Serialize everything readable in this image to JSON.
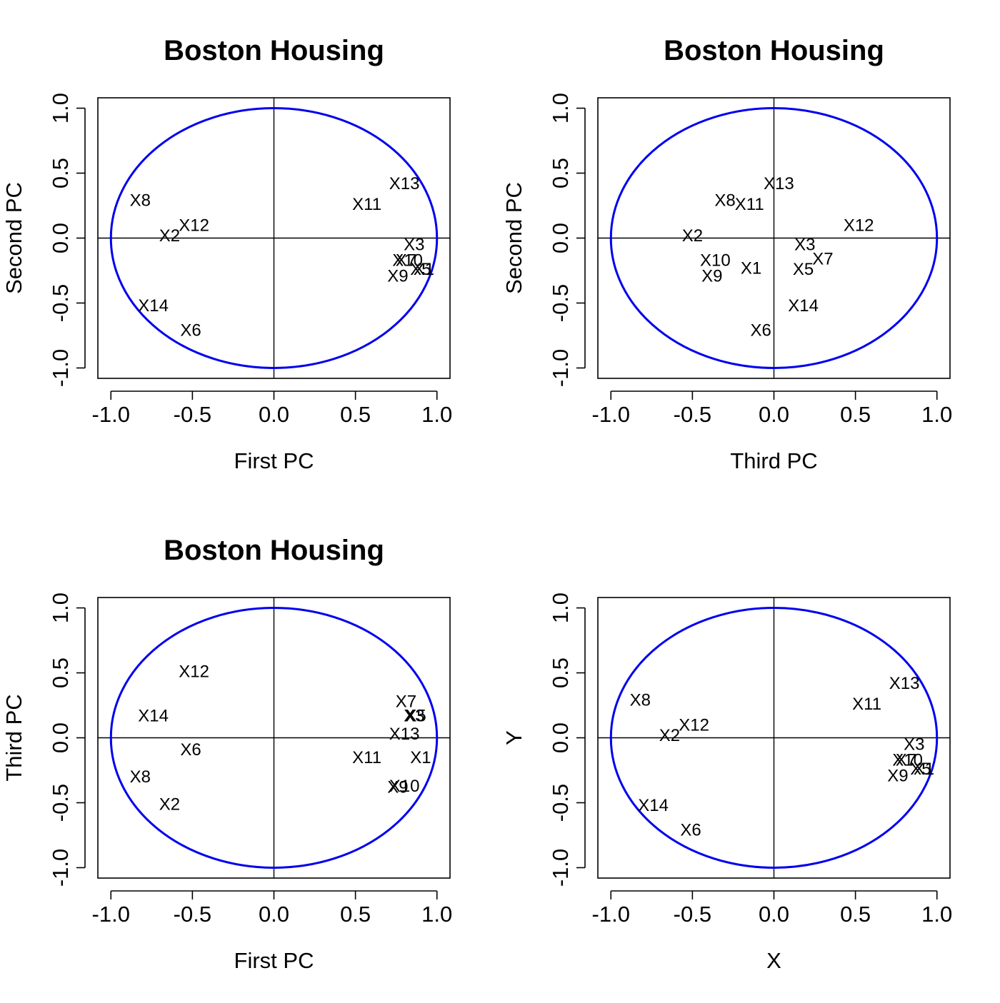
{
  "figure": {
    "background": "#ffffff",
    "circle_color": "#0000ee",
    "axis_color": "#000000"
  },
  "chart_data": [
    {
      "type": "scatter",
      "title": "Boston Housing",
      "xlabel": "First PC",
      "ylabel": "Second PC",
      "xlim": [
        -1.08,
        1.08
      ],
      "ylim": [
        -1.08,
        1.08
      ],
      "xticks": [
        -1.0,
        -0.5,
        0.0,
        0.5,
        1.0
      ],
      "yticks": [
        -1.0,
        -0.5,
        0.0,
        0.5,
        1.0
      ],
      "xtick_labels": [
        "-1.0",
        "-0.5",
        "0.0",
        "0.5",
        "1.0"
      ],
      "ytick_labels": [
        "-1.0",
        "-0.5",
        "0.0",
        "0.5",
        "1.0"
      ],
      "unit_circle": true,
      "reference_lines": [
        0,
        0
      ],
      "points": [
        {
          "label": "X1",
          "x": 0.92,
          "y": -0.24
        },
        {
          "label": "X2",
          "x": -0.64,
          "y": 0.02
        },
        {
          "label": "X3",
          "x": 0.86,
          "y": -0.05
        },
        {
          "label": "X5",
          "x": 0.9,
          "y": -0.24
        },
        {
          "label": "X6",
          "x": -0.51,
          "y": -0.71
        },
        {
          "label": "X7",
          "x": 0.81,
          "y": -0.17
        },
        {
          "label": "X8",
          "x": -0.82,
          "y": 0.29
        },
        {
          "label": "X9",
          "x": 0.76,
          "y": -0.29
        },
        {
          "label": "X10",
          "x": 0.82,
          "y": -0.17
        },
        {
          "label": "X11",
          "x": 0.57,
          "y": 0.26
        },
        {
          "label": "X12",
          "x": -0.49,
          "y": 0.1
        },
        {
          "label": "X13",
          "x": 0.8,
          "y": 0.42
        },
        {
          "label": "X14",
          "x": -0.74,
          "y": -0.52
        }
      ]
    },
    {
      "type": "scatter",
      "title": "Boston Housing",
      "xlabel": "Third PC",
      "ylabel": "Second PC",
      "xlim": [
        -1.08,
        1.08
      ],
      "ylim": [
        -1.08,
        1.08
      ],
      "xticks": [
        -1.0,
        -0.5,
        0.0,
        0.5,
        1.0
      ],
      "yticks": [
        -1.0,
        -0.5,
        0.0,
        0.5,
        1.0
      ],
      "xtick_labels": [
        "-1.0",
        "-0.5",
        "0.0",
        "0.5",
        "1.0"
      ],
      "ytick_labels": [
        "-1.0",
        "-0.5",
        "0.0",
        "0.5",
        "1.0"
      ],
      "unit_circle": true,
      "reference_lines": [
        0,
        0
      ],
      "points": [
        {
          "label": "X1",
          "x": -0.14,
          "y": -0.23
        },
        {
          "label": "X2",
          "x": -0.5,
          "y": 0.02
        },
        {
          "label": "X3",
          "x": 0.19,
          "y": -0.05
        },
        {
          "label": "X5",
          "x": 0.18,
          "y": -0.24
        },
        {
          "label": "X6",
          "x": -0.08,
          "y": -0.71
        },
        {
          "label": "X7",
          "x": 0.3,
          "y": -0.16
        },
        {
          "label": "X8",
          "x": -0.3,
          "y": 0.29
        },
        {
          "label": "X9",
          "x": -0.38,
          "y": -0.29
        },
        {
          "label": "X10",
          "x": -0.36,
          "y": -0.17
        },
        {
          "label": "X11",
          "x": -0.15,
          "y": 0.26
        },
        {
          "label": "X12",
          "x": 0.52,
          "y": 0.1
        },
        {
          "label": "X13",
          "x": 0.03,
          "y": 0.42
        },
        {
          "label": "X14",
          "x": 0.18,
          "y": -0.52
        }
      ]
    },
    {
      "type": "scatter",
      "title": "Boston Housing",
      "xlabel": "First PC",
      "ylabel": "Third PC",
      "xlim": [
        -1.08,
        1.08
      ],
      "ylim": [
        -1.08,
        1.08
      ],
      "xticks": [
        -1.0,
        -0.5,
        0.0,
        0.5,
        1.0
      ],
      "yticks": [
        -1.0,
        -0.5,
        0.0,
        0.5,
        1.0
      ],
      "xtick_labels": [
        "-1.0",
        "-0.5",
        "0.0",
        "0.5",
        "1.0"
      ],
      "ytick_labels": [
        "-1.0",
        "-0.5",
        "0.0",
        "0.5",
        "1.0"
      ],
      "unit_circle": true,
      "reference_lines": [
        0,
        0
      ],
      "points": [
        {
          "label": "X1",
          "x": 0.9,
          "y": -0.15
        },
        {
          "label": "X2",
          "x": -0.64,
          "y": -0.51
        },
        {
          "label": "X3",
          "x": 0.86,
          "y": 0.17
        },
        {
          "label": "X5",
          "x": 0.87,
          "y": 0.17
        },
        {
          "label": "X6",
          "x": -0.51,
          "y": -0.09
        },
        {
          "label": "X7",
          "x": 0.81,
          "y": 0.28
        },
        {
          "label": "X8",
          "x": -0.82,
          "y": -0.3
        },
        {
          "label": "X9",
          "x": 0.76,
          "y": -0.38
        },
        {
          "label": "X10",
          "x": 0.8,
          "y": -0.37
        },
        {
          "label": "X11",
          "x": 0.57,
          "y": -0.15
        },
        {
          "label": "X12",
          "x": -0.49,
          "y": 0.51
        },
        {
          "label": "X13",
          "x": 0.8,
          "y": 0.03
        },
        {
          "label": "X14",
          "x": -0.74,
          "y": 0.17
        }
      ]
    },
    {
      "type": "scatter",
      "title": "",
      "xlabel": "X",
      "ylabel": "Y",
      "xlim": [
        -1.08,
        1.08
      ],
      "ylim": [
        -1.08,
        1.08
      ],
      "xticks": [
        -1.0,
        -0.5,
        0.0,
        0.5,
        1.0
      ],
      "yticks": [
        -1.0,
        -0.5,
        0.0,
        0.5,
        1.0
      ],
      "xtick_labels": [
        "-1.0",
        "-0.5",
        "0.0",
        "0.5",
        "1.0"
      ],
      "ytick_labels": [
        "-1.0",
        "-0.5",
        "0.0",
        "0.5",
        "1.0"
      ],
      "unit_circle": true,
      "reference_lines": [
        0,
        0
      ],
      "points": [
        {
          "label": "X1",
          "x": 0.92,
          "y": -0.24
        },
        {
          "label": "X2",
          "x": -0.64,
          "y": 0.02
        },
        {
          "label": "X3",
          "x": 0.86,
          "y": -0.05
        },
        {
          "label": "X5",
          "x": 0.9,
          "y": -0.24
        },
        {
          "label": "X6",
          "x": -0.51,
          "y": -0.71
        },
        {
          "label": "X7",
          "x": 0.81,
          "y": -0.17
        },
        {
          "label": "X8",
          "x": -0.82,
          "y": 0.29
        },
        {
          "label": "X9",
          "x": 0.76,
          "y": -0.29
        },
        {
          "label": "X10",
          "x": 0.82,
          "y": -0.17
        },
        {
          "label": "X11",
          "x": 0.57,
          "y": 0.26
        },
        {
          "label": "X12",
          "x": -0.49,
          "y": 0.1
        },
        {
          "label": "X13",
          "x": 0.8,
          "y": 0.42
        },
        {
          "label": "X14",
          "x": -0.74,
          "y": -0.52
        }
      ]
    }
  ]
}
